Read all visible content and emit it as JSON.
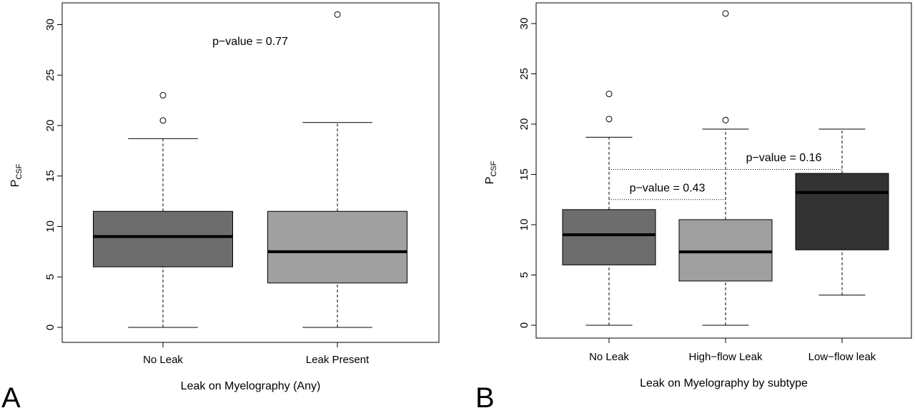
{
  "chart_data": [
    {
      "panel_label": "A",
      "type": "boxplot",
      "xlabel": "Leak on Myelography (Any)",
      "ylabel": "P",
      "ylabel_subscript": "CSF",
      "ylim": [
        0,
        32
      ],
      "yticks": [
        "0",
        "5",
        "10",
        "15",
        "20",
        "25",
        "30"
      ],
      "categories": [
        "No Leak",
        "Leak Present"
      ],
      "box_colors": [
        "#6d6d6d",
        "#a0a0a0"
      ],
      "boxes": [
        {
          "category": "No Leak",
          "whisker_low": 0,
          "q1": 6.0,
          "median": 9.0,
          "q3": 11.5,
          "whisker_high": 18.7,
          "outliers": [
            20.5,
            23.0
          ]
        },
        {
          "category": "Leak Present",
          "whisker_low": 0,
          "q1": 4.4,
          "median": 7.5,
          "q3": 11.5,
          "whisker_high": 20.3,
          "outliers": [
            31.0
          ]
        }
      ],
      "annotations": [
        {
          "text": "p−value = 0.77",
          "x": 1.5,
          "y": 28.0
        }
      ]
    },
    {
      "panel_label": "B",
      "type": "boxplot",
      "xlabel": "Leak on Myelography by subtype",
      "ylabel": "P",
      "ylabel_subscript": "CSF",
      "ylim": [
        0,
        32
      ],
      "yticks": [
        "0",
        "5",
        "10",
        "15",
        "20",
        "25",
        "30"
      ],
      "categories": [
        "No Leak",
        "High−flow Leak",
        "Low−flow leak"
      ],
      "box_colors": [
        "#6d6d6d",
        "#a0a0a0",
        "#333333"
      ],
      "boxes": [
        {
          "category": "No Leak",
          "whisker_low": 0,
          "q1": 6.0,
          "median": 9.0,
          "q3": 11.5,
          "whisker_high": 18.7,
          "outliers": [
            20.5,
            23.0
          ]
        },
        {
          "category": "High−flow Leak",
          "whisker_low": 0,
          "q1": 4.4,
          "median": 7.3,
          "q3": 10.5,
          "whisker_high": 19.5,
          "outliers": [
            20.4,
            31.0
          ]
        },
        {
          "category": "Low−flow leak",
          "whisker_low": 3.0,
          "q1": 7.5,
          "median": 13.2,
          "q3": 15.1,
          "whisker_high": 19.5,
          "outliers": []
        }
      ],
      "annotations": [
        {
          "text": "p−value = 0.43",
          "x": 1.5,
          "y": 13.3
        },
        {
          "text": "p−value = 0.16",
          "x": 2.5,
          "y": 16.3
        }
      ],
      "comparison_lines": [
        {
          "x_from": 1,
          "x_to": 2,
          "y": 12.5
        },
        {
          "x_from": 1,
          "x_to": 3,
          "y": 15.5
        }
      ]
    }
  ]
}
